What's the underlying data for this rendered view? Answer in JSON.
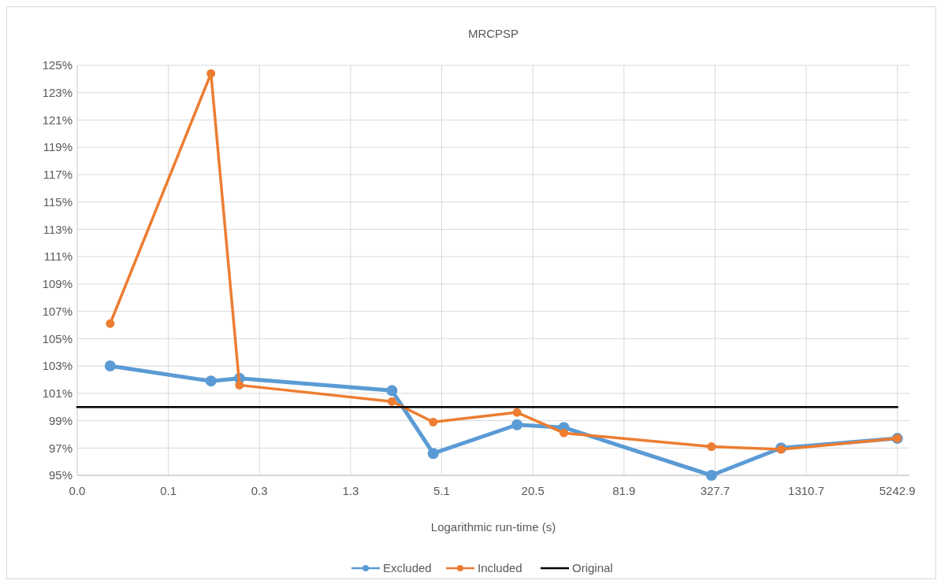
{
  "chart_data": {
    "type": "line",
    "title": "MRCPSP",
    "xlabel": "Logarithmic run-time (s)",
    "log": "x",
    "x": [
      0.033,
      0.153,
      0.236,
      2.4,
      4.5,
      16.1,
      32.8,
      310,
      894,
      5242.9
    ],
    "xlim": [
      0.02,
      6300
    ],
    "xticks": [
      {
        "value": 0.02,
        "label": "0.0"
      },
      {
        "value": 0.08,
        "label": "0.1"
      },
      {
        "value": 0.32,
        "label": "0.3"
      },
      {
        "value": 1.28,
        "label": "1.3"
      },
      {
        "value": 5.12,
        "label": "5.1"
      },
      {
        "value": 20.48,
        "label": "20.5"
      },
      {
        "value": 81.92,
        "label": "81.9"
      },
      {
        "value": 327.68,
        "label": "327.7"
      },
      {
        "value": 1310.72,
        "label": "1310.7"
      },
      {
        "value": 5242.88,
        "label": "5242.9"
      }
    ],
    "ylim": [
      95,
      125
    ],
    "yticks": [
      {
        "value": 95,
        "label": "95%"
      },
      {
        "value": 97,
        "label": "97%"
      },
      {
        "value": 99,
        "label": "99%"
      },
      {
        "value": 101,
        "label": "101%"
      },
      {
        "value": 103,
        "label": "103%"
      },
      {
        "value": 105,
        "label": "105%"
      },
      {
        "value": 107,
        "label": "107%"
      },
      {
        "value": 109,
        "label": "109%"
      },
      {
        "value": 111,
        "label": "111%"
      },
      {
        "value": 113,
        "label": "113%"
      },
      {
        "value": 115,
        "label": "115%"
      },
      {
        "value": 117,
        "label": "117%"
      },
      {
        "value": 119,
        "label": "119%"
      },
      {
        "value": 121,
        "label": "121%"
      },
      {
        "value": 123,
        "label": "123%"
      },
      {
        "value": 125,
        "label": "125%"
      }
    ],
    "grid": true,
    "legend": "bottom",
    "marker": "circle",
    "series": [
      {
        "name": "Excluded",
        "color": "#5b9bd5",
        "values": [
          103.0,
          101.9,
          102.1,
          101.2,
          96.6,
          98.7,
          98.5,
          95.0,
          97.0,
          97.7
        ]
      },
      {
        "name": "Included",
        "color": "#ed7d31",
        "values": [
          106.1,
          124.4,
          101.6,
          100.4,
          98.9,
          99.6,
          98.1,
          97.1,
          96.9,
          97.7
        ]
      },
      {
        "name": "Original",
        "color": "#000000",
        "marker": "none",
        "x": [
          0.02,
          5242.88
        ],
        "values": [
          100,
          100
        ]
      }
    ]
  }
}
